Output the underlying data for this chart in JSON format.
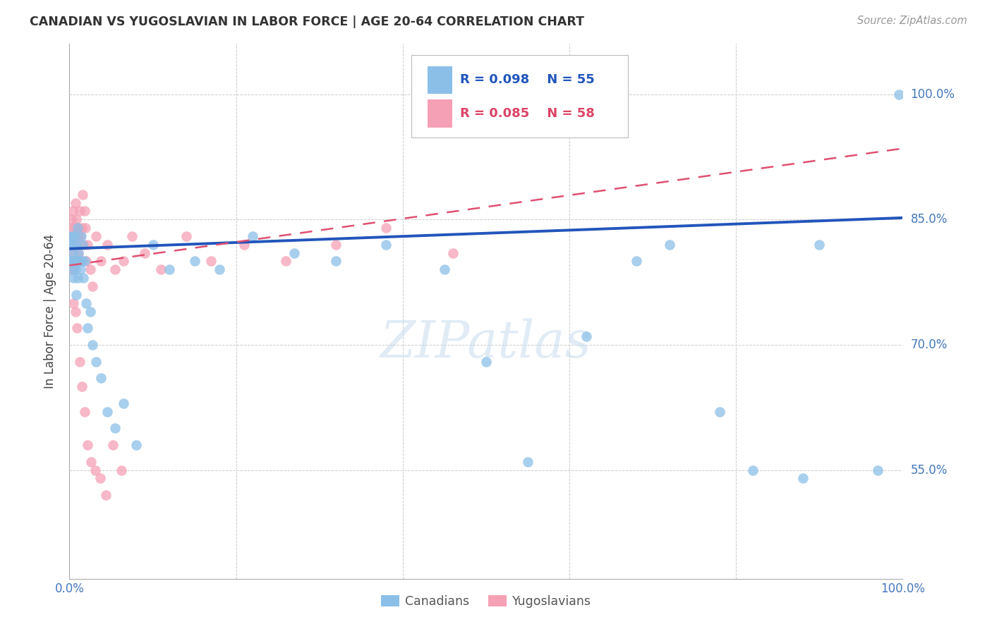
{
  "title": "CANADIAN VS YUGOSLAVIAN IN LABOR FORCE | AGE 20-64 CORRELATION CHART",
  "source": "Source: ZipAtlas.com",
  "ylabel": "In Labor Force | Age 20-64",
  "blue_color": "#8BBFE8",
  "pink_color": "#F5A0B5",
  "blue_line_color": "#2255BB",
  "pink_line_color": "#E05070",
  "grid_color": "#CCCCCC",
  "watermark_text": "ZIPatlas",
  "legend_blue_R": "R = 0.098",
  "legend_blue_N": "N = 55",
  "legend_pink_R": "R = 0.085",
  "legend_pink_N": "N = 58",
  "ytick_values": [
    0.55,
    0.7,
    0.85,
    1.0
  ],
  "ytick_labels": [
    "55.0%",
    "70.0%",
    "85.0%",
    "100.0%"
  ],
  "ymin": 0.42,
  "ymax": 1.06,
  "xmin": 0.0,
  "xmax": 1.0,
  "ca_blue_line_start_y": 0.815,
  "ca_blue_line_end_y": 0.852,
  "yu_pink_line_start_y": 0.795,
  "yu_pink_line_end_y": 0.935,
  "canadians_x": [
    0.001,
    0.002,
    0.002,
    0.003,
    0.003,
    0.004,
    0.004,
    0.005,
    0.005,
    0.006,
    0.006,
    0.007,
    0.008,
    0.008,
    0.009,
    0.01,
    0.01,
    0.011,
    0.012,
    0.013,
    0.014,
    0.015,
    0.016,
    0.017,
    0.018,
    0.02,
    0.022,
    0.025,
    0.028,
    0.032,
    0.038,
    0.045,
    0.055,
    0.065,
    0.08,
    0.1,
    0.12,
    0.15,
    0.18,
    0.22,
    0.27,
    0.32,
    0.38,
    0.45,
    0.5,
    0.55,
    0.62,
    0.68,
    0.72,
    0.78,
    0.82,
    0.88,
    0.9,
    0.97,
    0.995
  ],
  "canadians_y": [
    0.82,
    0.8,
    0.83,
    0.79,
    0.81,
    0.83,
    0.8,
    0.82,
    0.78,
    0.83,
    0.8,
    0.79,
    0.82,
    0.76,
    0.8,
    0.84,
    0.78,
    0.81,
    0.8,
    0.79,
    0.83,
    0.8,
    0.82,
    0.78,
    0.8,
    0.75,
    0.72,
    0.74,
    0.7,
    0.68,
    0.66,
    0.62,
    0.6,
    0.63,
    0.58,
    0.82,
    0.79,
    0.8,
    0.79,
    0.83,
    0.81,
    0.8,
    0.82,
    0.79,
    0.68,
    0.56,
    0.71,
    0.8,
    0.82,
    0.62,
    0.55,
    0.54,
    0.82,
    0.55,
    1.0
  ],
  "yugoslavians_x": [
    0.001,
    0.002,
    0.002,
    0.003,
    0.003,
    0.004,
    0.004,
    0.005,
    0.005,
    0.006,
    0.006,
    0.007,
    0.008,
    0.009,
    0.009,
    0.01,
    0.011,
    0.011,
    0.012,
    0.013,
    0.014,
    0.015,
    0.016,
    0.017,
    0.018,
    0.019,
    0.02,
    0.022,
    0.025,
    0.028,
    0.032,
    0.038,
    0.045,
    0.055,
    0.065,
    0.075,
    0.09,
    0.11,
    0.14,
    0.17,
    0.21,
    0.26,
    0.32,
    0.38,
    0.46,
    0.005,
    0.007,
    0.009,
    0.012,
    0.015,
    0.018,
    0.022,
    0.026,
    0.031,
    0.037,
    0.044,
    0.052,
    0.062
  ],
  "yugoslavians_y": [
    0.83,
    0.85,
    0.82,
    0.84,
    0.8,
    0.86,
    0.81,
    0.83,
    0.79,
    0.84,
    0.82,
    0.87,
    0.85,
    0.82,
    0.8,
    0.84,
    0.83,
    0.81,
    0.86,
    0.83,
    0.8,
    0.84,
    0.88,
    0.82,
    0.86,
    0.84,
    0.8,
    0.82,
    0.79,
    0.77,
    0.83,
    0.8,
    0.82,
    0.79,
    0.8,
    0.83,
    0.81,
    0.79,
    0.83,
    0.8,
    0.82,
    0.8,
    0.82,
    0.84,
    0.81,
    0.75,
    0.74,
    0.72,
    0.68,
    0.65,
    0.62,
    0.58,
    0.56,
    0.55,
    0.54,
    0.52,
    0.58,
    0.55
  ]
}
